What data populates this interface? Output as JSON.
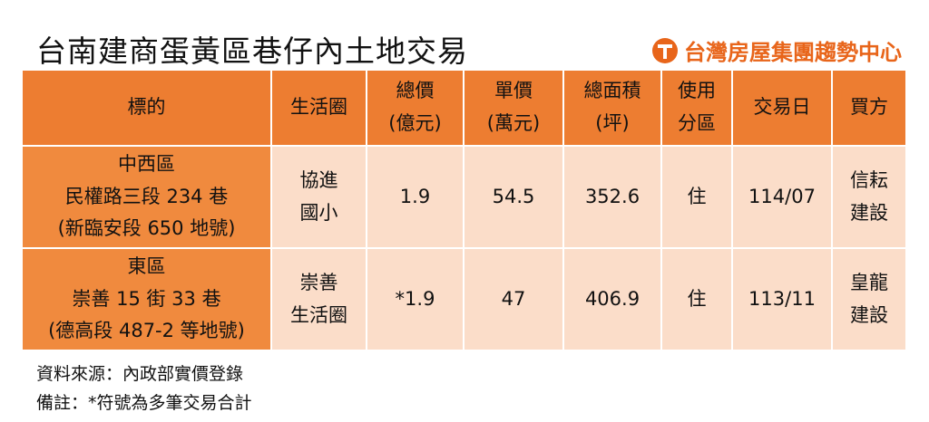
{
  "header": {
    "title": "台南建商蛋黃區巷仔內土地交易",
    "brand": "台灣房屋集團趨勢中心"
  },
  "table": {
    "columns": [
      [
        "標的"
      ],
      [
        "生活圈"
      ],
      [
        "總價",
        "(億元)"
      ],
      [
        "單價",
        "(萬元)"
      ],
      [
        "總面積",
        "(坪)"
      ],
      [
        "使用",
        "分區"
      ],
      [
        "交易日"
      ],
      [
        "買方"
      ]
    ],
    "rows": [
      [
        [
          "中西區",
          "民權路三段 234 巷",
          "(新臨安段 650 地號)"
        ],
        [
          "協進",
          "國小"
        ],
        [
          "1.9"
        ],
        [
          "54.5"
        ],
        [
          "352.6"
        ],
        [
          "住"
        ],
        [
          "114/07"
        ],
        [
          "信耘",
          "建設"
        ]
      ],
      [
        [
          "東區",
          "崇善 15 街 33 巷",
          "(德高段 487-2 等地號)"
        ],
        [
          "崇善",
          "生活圈"
        ],
        [
          "*1.9"
        ],
        [
          "47"
        ],
        [
          "406.9"
        ],
        [
          "住"
        ],
        [
          "113/11"
        ],
        [
          "皇龍",
          "建設"
        ]
      ]
    ]
  },
  "notes": [
    "資料來源：內政部實價登錄",
    "備註：*符號為多筆交易合計"
  ]
}
